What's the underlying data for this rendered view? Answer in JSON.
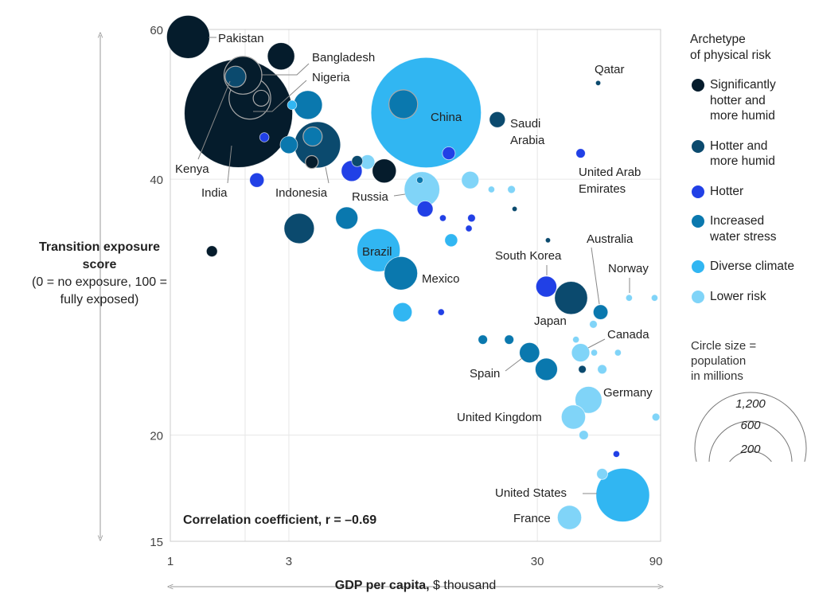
{
  "chart_data": {
    "type": "scatter",
    "subtype": "bubble",
    "title": "",
    "xlabel_bold": "GDP per capita,",
    "xlabel_rest": " $ thousand",
    "ylabel_bold": "Transition exposure score",
    "ylabel_note": "(0 = no exposure, 100 = fully exposed)",
    "x_scale": "log",
    "y_scale": "log",
    "xlim": [
      1,
      94
    ],
    "ylim": [
      15,
      60
    ],
    "x_ticks": [
      1,
      3,
      30,
      90
    ],
    "y_ticks": [
      60,
      40,
      20,
      15
    ],
    "x_grid": [
      2,
      3,
      30
    ],
    "y_grid": [
      40,
      20
    ],
    "annotation": "Correlation coefficient, r = –0.69",
    "legend": {
      "title_lines": [
        "Archetype",
        "of physical risk"
      ],
      "placement": "right",
      "items": [
        {
          "lines": [
            "Significantly",
            "hotter and",
            "more humid"
          ],
          "color": "#051c2c"
        },
        {
          "lines": [
            "Hotter and",
            "more humid"
          ],
          "color": "#0b4a6e"
        },
        {
          "lines": [
            "Hotter"
          ],
          "color": "#2140e6"
        },
        {
          "lines": [
            "Increased",
            "water stress"
          ],
          "color": "#0a78ae"
        },
        {
          "lines": [
            "Diverse climate"
          ],
          "color": "#31b6f2"
        },
        {
          "lines": [
            "Lower risk"
          ],
          "color": "#80d4f8"
        }
      ]
    },
    "size_legend": {
      "title_lines": [
        "Circle size =",
        "population",
        "in millions"
      ],
      "sizes": [
        {
          "value": 1200,
          "label": "1,200"
        },
        {
          "value": 600,
          "label": "600"
        },
        {
          "value": 200,
          "label": "200"
        }
      ]
    },
    "points": [
      {
        "label": "Pakistan",
        "gdp": 1.18,
        "score": 58.8,
        "pop": 213,
        "archetype": 0
      },
      {
        "label": "",
        "gdp": 2.79,
        "score": 55.8,
        "pop": 85,
        "archetype": 0
      },
      {
        "label": "India",
        "gdp": 1.88,
        "score": 47.8,
        "pop": 1350,
        "archetype": 0
      },
      {
        "label": "Bangladesh",
        "gdp": 1.96,
        "score": 53.0,
        "pop": 165,
        "archetype": 0,
        "outlined": true
      },
      {
        "label": "Nigeria",
        "gdp": 2.09,
        "score": 49.8,
        "pop": 200,
        "archetype": 0,
        "outlined": true
      },
      {
        "label": "",
        "gdp": 2.32,
        "score": 49.8,
        "pop": 29,
        "archetype": 0,
        "outlined": true
      },
      {
        "label": "Kenya",
        "gdp": 1.83,
        "score": 52.8,
        "pop": 50,
        "archetype": 1,
        "outlined": true
      },
      {
        "label": "",
        "gdp": 3.09,
        "score": 48.9,
        "pop": 10,
        "archetype": 4
      },
      {
        "label": "",
        "gdp": 3.58,
        "score": 48.9,
        "pop": 95,
        "archetype": 3
      },
      {
        "label": "",
        "gdp": 2.39,
        "score": 44.8,
        "pop": 10,
        "archetype": 2
      },
      {
        "label": "Indonesia",
        "gdp": 3.91,
        "score": 43.9,
        "pop": 245,
        "archetype": 1
      },
      {
        "label": "",
        "gdp": 3.74,
        "score": 44.9,
        "pop": 42,
        "archetype": 3,
        "outlined": true
      },
      {
        "label": "",
        "gdp": 3.71,
        "score": 41.9,
        "pop": 19,
        "archetype": 0,
        "outlined": true
      },
      {
        "label": "",
        "gdp": 3.0,
        "score": 43.9,
        "pop": 35,
        "archetype": 3
      },
      {
        "label": "",
        "gdp": 2.23,
        "score": 39.9,
        "pop": 24,
        "archetype": 2
      },
      {
        "label": "",
        "gdp": 5.65,
        "score": 42.0,
        "pop": 14,
        "archetype": 1
      },
      {
        "label": "",
        "gdp": 6.22,
        "score": 41.9,
        "pop": 24,
        "archetype": 5
      },
      {
        "label": "",
        "gdp": 5.37,
        "score": 40.9,
        "pop": 50,
        "archetype": 2
      },
      {
        "label": "",
        "gdp": 7.26,
        "score": 40.9,
        "pop": 66,
        "archetype": 0
      },
      {
        "label": "",
        "gdp": 3.3,
        "score": 35.0,
        "pop": 105,
        "archetype": 1
      },
      {
        "label": "",
        "gdp": 5.13,
        "score": 36.0,
        "pop": 57,
        "archetype": 3
      },
      {
        "label": "",
        "gdp": 1.47,
        "score": 32.9,
        "pop": 14,
        "archetype": 0
      },
      {
        "label": "Brazil",
        "gdp": 6.89,
        "score": 33.0,
        "pop": 213,
        "archetype": 4
      },
      {
        "label": "China",
        "gdp": 10.7,
        "score": 47.9,
        "pop": 1400,
        "archetype": 4
      },
      {
        "label": "",
        "gdp": 8.66,
        "score": 49.0,
        "pop": 95,
        "archetype": 3,
        "outlined": true
      },
      {
        "label": "",
        "gdp": 13.2,
        "score": 42.9,
        "pop": 19,
        "archetype": 2
      },
      {
        "label": "Saudi Arabia",
        "gdp": 20.7,
        "score": 47.0,
        "pop": 29,
        "archetype": 1
      },
      {
        "label": "Qatar",
        "gdp": 52.7,
        "score": 51.9,
        "pop": 3,
        "archetype": 1
      },
      {
        "label": "United Arab Emirates",
        "gdp": 44.8,
        "score": 42.9,
        "pop": 10,
        "archetype": 2
      },
      {
        "label": "Russia",
        "gdp": 10.3,
        "score": 38.9,
        "pop": 145,
        "archetype": 5
      },
      {
        "label": "",
        "gdp": 10.1,
        "score": 39.9,
        "pop": 5,
        "archetype": 3
      },
      {
        "label": "",
        "gdp": 10.6,
        "score": 36.9,
        "pop": 29,
        "archetype": 2
      },
      {
        "label": "",
        "gdp": 16.1,
        "score": 39.9,
        "pop": 35,
        "archetype": 5
      },
      {
        "label": "",
        "gdp": 19.6,
        "score": 38.9,
        "pop": 5,
        "archetype": 5
      },
      {
        "label": "",
        "gdp": 23.6,
        "score": 38.9,
        "pop": 7,
        "archetype": 5
      },
      {
        "label": "",
        "gdp": 24.3,
        "score": 36.9,
        "pop": 3,
        "archetype": 1
      },
      {
        "label": "",
        "gdp": 12.5,
        "score": 36.0,
        "pop": 5,
        "archetype": 2
      },
      {
        "label": "",
        "gdp": 16.3,
        "score": 36.0,
        "pop": 7,
        "archetype": 2
      },
      {
        "label": "",
        "gdp": 15.9,
        "score": 35.0,
        "pop": 5,
        "archetype": 2
      },
      {
        "label": "",
        "gdp": 13.5,
        "score": 33.9,
        "pop": 19,
        "archetype": 4
      },
      {
        "label": "Mexico",
        "gdp": 8.47,
        "score": 31.0,
        "pop": 128,
        "archetype": 3
      },
      {
        "label": "",
        "gdp": 8.6,
        "score": 27.9,
        "pop": 42,
        "archetype": 4
      },
      {
        "label": "",
        "gdp": 12.3,
        "score": 27.9,
        "pop": 5,
        "archetype": 2
      },
      {
        "label": "",
        "gdp": 33.1,
        "score": 33.9,
        "pop": 3,
        "archetype": 1
      },
      {
        "label": "South Korea",
        "gdp": 32.6,
        "score": 29.9,
        "pop": 50,
        "archetype": 2
      },
      {
        "label": "Japan",
        "gdp": 41.0,
        "score": 29.0,
        "pop": 125,
        "archetype": 1
      },
      {
        "label": "Australia",
        "gdp": 53.9,
        "score": 27.9,
        "pop": 25,
        "archetype": 3
      },
      {
        "label": "Norway",
        "gdp": 70.2,
        "score": 29.0,
        "pop": 5,
        "archetype": 5
      },
      {
        "label": "",
        "gdp": 88.9,
        "score": 29.0,
        "pop": 5,
        "archetype": 5
      },
      {
        "label": "",
        "gdp": 50.4,
        "score": 27.0,
        "pop": 7,
        "archetype": 5
      },
      {
        "label": "",
        "gdp": 18.1,
        "score": 25.9,
        "pop": 10,
        "archetype": 3
      },
      {
        "label": "",
        "gdp": 23.1,
        "score": 25.9,
        "pop": 10,
        "archetype": 3
      },
      {
        "label": "Spain",
        "gdp": 27.9,
        "score": 25.0,
        "pop": 47,
        "archetype": 3
      },
      {
        "label": "",
        "gdp": 32.6,
        "score": 23.9,
        "pop": 57,
        "archetype": 3
      },
      {
        "label": "Canada",
        "gdp": 44.8,
        "score": 25.0,
        "pop": 38,
        "archetype": 5
      },
      {
        "label": "",
        "gdp": 42.9,
        "score": 25.9,
        "pop": 5,
        "archetype": 5
      },
      {
        "label": "",
        "gdp": 50.8,
        "score": 25.0,
        "pop": 5,
        "archetype": 5
      },
      {
        "label": "",
        "gdp": 63.3,
        "score": 25.0,
        "pop": 5,
        "archetype": 5
      },
      {
        "label": "",
        "gdp": 45.5,
        "score": 23.9,
        "pop": 7,
        "archetype": 1
      },
      {
        "label": "",
        "gdp": 54.7,
        "score": 23.9,
        "pop": 10,
        "archetype": 5
      },
      {
        "label": "Germany",
        "gdp": 48.2,
        "score": 22.0,
        "pop": 83,
        "archetype": 5
      },
      {
        "label": "United Kingdom",
        "gdp": 41.9,
        "score": 21.0,
        "pop": 67,
        "archetype": 5
      },
      {
        "label": "",
        "gdp": 90.0,
        "score": 21.0,
        "pop": 7,
        "archetype": 5
      },
      {
        "label": "",
        "gdp": 46.1,
        "score": 20.0,
        "pop": 10,
        "archetype": 5
      },
      {
        "label": "",
        "gdp": 62.4,
        "score": 19.0,
        "pop": 5,
        "archetype": 2
      },
      {
        "label": "",
        "gdp": 54.7,
        "score": 18.0,
        "pop": 14,
        "archetype": 5
      },
      {
        "label": "United States",
        "gdp": 66.2,
        "score": 17.0,
        "pop": 330,
        "archetype": 4
      },
      {
        "label": "France",
        "gdp": 40.4,
        "score": 16.0,
        "pop": 67,
        "archetype": 5
      }
    ],
    "point_labels": {
      "pakistan": "Pakistan",
      "bangladesh": "Bangladesh",
      "nigeria": "Nigeria",
      "kenya": "Kenya",
      "india": "India",
      "indonesia": "Indonesia",
      "russia": "Russia",
      "china": "China",
      "saudi_1": "Saudi",
      "saudi_2": "Arabia",
      "qatar": "Qatar",
      "uae_1": "United Arab",
      "uae_2": "Emirates",
      "brazil": "Brazil",
      "mexico": "Mexico",
      "south_korea": "South Korea",
      "australia": "Australia",
      "norway": "Norway",
      "japan": "Japan",
      "canada": "Canada",
      "spain": "Spain",
      "germany": "Germany",
      "uk": "United Kingdom",
      "us": "United States",
      "france": "France"
    }
  }
}
